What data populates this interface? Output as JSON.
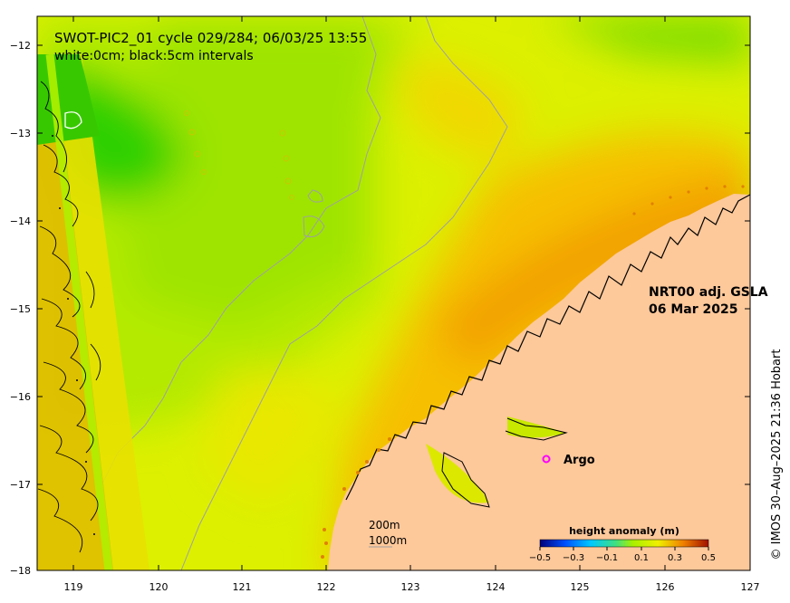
{
  "title": {
    "line1": "SWOT-PIC2_01 cycle 029/284; 06/03/25 13:55",
    "line2": "white:0cm; black:5cm intervals"
  },
  "product": {
    "line1": "NRT00 adj. GSLA",
    "line2": "06 Mar 2025"
  },
  "argo": {
    "marker": "o",
    "label": "Argo",
    "color": "#ff00ff"
  },
  "isobaths": {
    "line1": "200m",
    "line2": "1000m"
  },
  "colorbar": {
    "title": "height anomaly (m)",
    "tick_labels": [
      "−0.5",
      "−0.3",
      "−0.1",
      "0.1",
      "0.3",
      "0.5"
    ],
    "range": [
      -0.5,
      0.5
    ]
  },
  "credit": "© IMOS 30–Aug–2025 21:36 Hobart",
  "axes": {
    "x_ticks": [
      "119",
      "120",
      "121",
      "122",
      "123",
      "124",
      "125",
      "126",
      "127"
    ],
    "y_ticks": [
      "−12",
      "−13",
      "−14",
      "−15",
      "−16",
      "−17",
      "−18"
    ]
  },
  "colors": {
    "land": "#fdc89a",
    "field_high": "#f7a600",
    "field_mid": "#e8f000",
    "field_low": "#3ec800",
    "swath_contours": "#000000",
    "isobath_lines": "#a0a0a0"
  }
}
